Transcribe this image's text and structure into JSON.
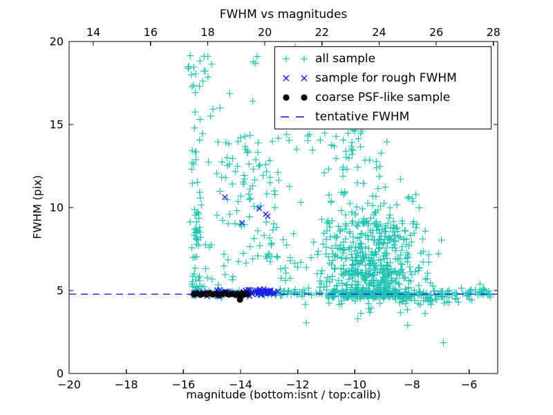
{
  "figure": {
    "background": "#ffffff"
  },
  "chart_data": {
    "type": "scatter",
    "title": "FWHM vs magnitudes",
    "xlabel": "magnitude (bottom:isnt / top:calib)",
    "ylabel": "FWHM (pix)",
    "grid": false,
    "legend_position": "upper right",
    "x_bottom": {
      "lim": [
        -20,
        -5
      ],
      "ticks": [
        -20,
        -18,
        -16,
        -14,
        -12,
        -10,
        -8,
        -6
      ],
      "labels": [
        "−20",
        "−18",
        "−16",
        "−14",
        "−12",
        "−10",
        "−8",
        "−6"
      ]
    },
    "x_top": {
      "lim": [
        13.15,
        28.15
      ],
      "ticks": [
        14,
        16,
        18,
        20,
        22,
        24,
        26,
        28
      ],
      "labels": [
        "14",
        "16",
        "18",
        "20",
        "22",
        "24",
        "26",
        "28"
      ]
    },
    "y_axis": {
      "lim": [
        0,
        20
      ],
      "ticks": [
        0,
        5,
        10,
        15,
        20
      ],
      "labels": [
        "0",
        "5",
        "10",
        "15",
        "20"
      ]
    },
    "tentative_fwhm": 4.78,
    "colors": {
      "all_sample": "#1dc2b2",
      "rough": "#1d1de8",
      "coarse": "#000000",
      "line": "#1d1de8",
      "axes": "#000000"
    },
    "legend": [
      {
        "label": "all sample",
        "marker": "plus",
        "color_key": "all_sample"
      },
      {
        "label": "sample for rough FWHM",
        "marker": "x",
        "color_key": "rough"
      },
      {
        "label": "coarse PSF-like sample",
        "marker": "dot",
        "color_key": "coarse"
      },
      {
        "label": "tentative FWHM",
        "marker": "dash",
        "color_key": "line"
      }
    ],
    "series": [
      {
        "name": "all sample",
        "marker": "plus",
        "color_key": "all_sample",
        "clusters": [
          {
            "n": 62,
            "x": [
              "n",
              -15.55,
              0.1,
              -15.8,
              -15.32
            ],
            "y": [
              "pl",
              4.9,
              17.5,
              2.1
            ]
          },
          {
            "n": 18,
            "x": [
              "pl",
              -15.85,
              -14.9,
              1.6
            ],
            "y": [
              "u",
              16.6,
              19.2
            ]
          },
          {
            "n": 10,
            "x": [
              "u",
              -15.3,
              -12.0
            ],
            "y": [
              "u",
              14.6,
              19.2
            ]
          },
          {
            "n": 120,
            "x": [
              "n",
              -13.6,
              1.15,
              -15.45,
              -10.8
            ],
            "y": [
              "u",
              6.4,
              14.4
            ]
          },
          {
            "n": 15,
            "x": [
              "u",
              -15.5,
              -11.8
            ],
            "y": [
              "u",
              5.2,
              6.4
            ]
          },
          {
            "n": 470,
            "x": [
              "n",
              -9.3,
              0.85,
              -11.7,
              -6.8
            ],
            "y": [
              "pl",
              4.6,
              9.2,
              2.0
            ]
          },
          {
            "n": 165,
            "x": [
              "n",
              -9.6,
              0.85,
              -11.9,
              -7.4
            ],
            "y": [
              "pl",
              6.0,
              12.0,
              1.6
            ]
          },
          {
            "n": 40,
            "x": [
              "n",
              -10.2,
              1.0,
              -12.4,
              -8.2
            ],
            "y": [
              "u",
              11.8,
              14.8
            ]
          },
          {
            "n": 200,
            "x": [
              "u",
              -15.7,
              -6.4
            ],
            "y": [
              "n",
              4.82,
              0.1,
              4.55,
              5.15
            ]
          },
          {
            "n": 24,
            "x": [
              "u",
              -6.4,
              -5.25
            ],
            "y": [
              "n",
              4.8,
              0.17,
              4.35,
              5.3
            ]
          },
          {
            "n": 30,
            "x": [
              "u",
              -8.6,
              -6.3
            ],
            "y": [
              "u",
              4.15,
              4.65
            ]
          },
          {
            "n": 26,
            "x": [
              "u",
              -11.8,
              -6.6
            ],
            "y": [
              "ph",
              3.55,
              4.55,
              2.0
            ]
          },
          {
            "n": 8,
            "x": [
              "u",
              -6.25,
              -5.2
            ],
            "y": [
              "n",
              4.75,
              0.25,
              4.2,
              5.45
            ]
          }
        ],
        "points": [
          [
            -12.09,
            19.7
          ],
          [
            -13.42,
            19.1
          ],
          [
            -8.4,
            11.7
          ],
          [
            -5.62,
            5.38
          ],
          [
            -8.15,
            2.9
          ],
          [
            -6.9,
            1.85
          ],
          [
            -11.7,
            3.05
          ],
          [
            -9.9,
            3.3
          ],
          [
            -14.72,
            16.0
          ],
          [
            -15.05,
            15.5
          ]
        ]
      },
      {
        "name": "tentative FWHM",
        "marker": "hline",
        "color_key": "line",
        "y": 4.78
      },
      {
        "name": "sample for rough FWHM",
        "marker": "x",
        "color_key": "rough",
        "clusters": [
          {
            "n": 42,
            "x": [
              "u",
              -15.68,
              -13.2
            ],
            "y": [
              "n",
              4.85,
              0.09,
              4.62,
              5.1
            ]
          },
          {
            "n": 38,
            "x": [
              "n",
              -13.35,
              0.35,
              -14.1,
              -12.68
            ],
            "y": [
              "n",
              4.88,
              0.11,
              4.6,
              5.15
            ]
          }
        ],
        "points": [
          [
            -14.55,
            10.62
          ],
          [
            -13.95,
            9.08
          ],
          [
            -13.35,
            9.95
          ],
          [
            -13.12,
            9.6
          ],
          [
            -13.05,
            9.48
          ]
        ]
      },
      {
        "name": "coarse PSF-like sample",
        "marker": "dot",
        "color_key": "coarse",
        "points": [
          [
            -15.63,
            4.78
          ],
          [
            -15.52,
            4.82
          ],
          [
            -15.41,
            4.75
          ],
          [
            -15.3,
            4.8
          ],
          [
            -15.19,
            4.77
          ],
          [
            -15.08,
            4.83
          ],
          [
            -14.97,
            4.76
          ],
          [
            -14.86,
            4.8
          ],
          [
            -14.75,
            4.74
          ],
          [
            -14.63,
            4.79
          ],
          [
            -14.52,
            4.82
          ],
          [
            -14.41,
            4.76
          ],
          [
            -14.3,
            4.8
          ],
          [
            -14.19,
            4.75
          ],
          [
            -14.08,
            4.78
          ],
          [
            -13.97,
            4.81
          ],
          [
            -13.88,
            4.76
          ],
          [
            -13.77,
            4.79
          ],
          [
            -14.02,
            4.46
          ]
        ]
      }
    ]
  }
}
